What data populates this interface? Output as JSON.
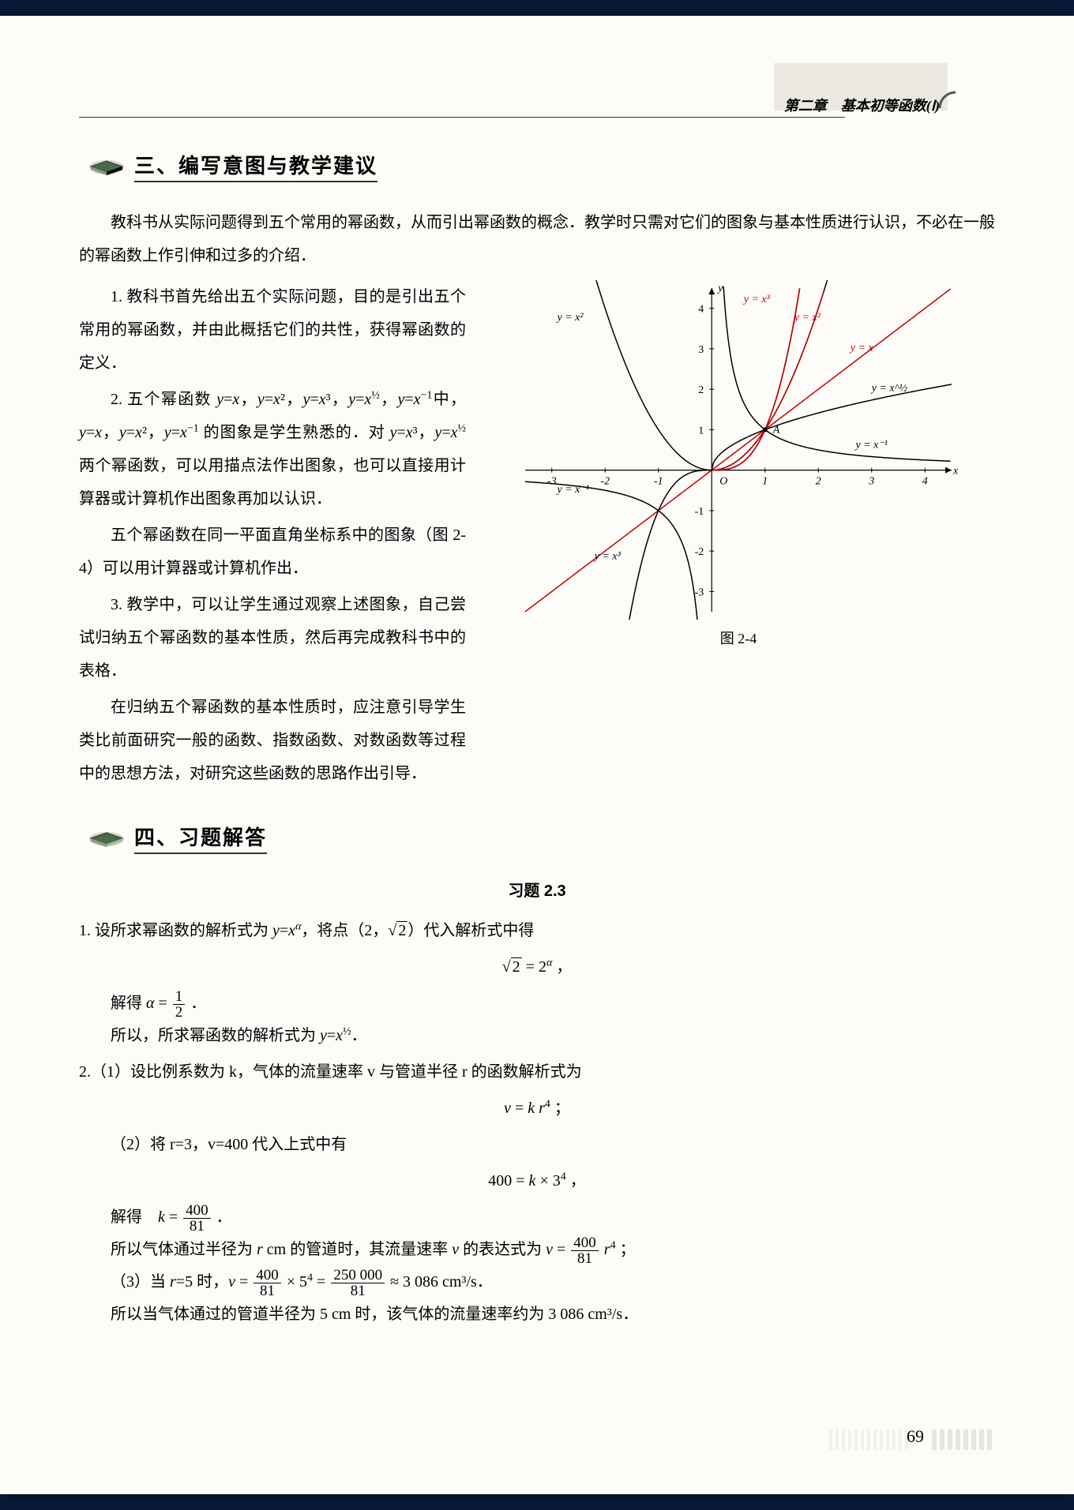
{
  "header": {
    "chapter": "第二章　基本初等函数(Ⅰ)"
  },
  "section3": {
    "title": "三、编写意图与教学建议",
    "intro": "教科书从实际问题得到五个常用的幂函数，从而引出幂函数的概念．教学时只需对它们的图象与基本性质进行认识，不必在一般的幂函数上作引伸和过多的介绍．",
    "p1a": "1. 教科书首先给出五个实际问题，目的是引出五个常用的幂函数，并由此概括它们的共性，获得幂函数的定义．",
    "p2a": "2. 五个幂函数 y=x，y=x²，y=x³，y=x^(1/2)，y=x⁻¹中，y=x，y=x²，y=x⁻¹ 的图象是学生熟悉的．对 y=x³，y=x^(1/2) 两个幂函数，可以用描点法作出图象，也可以直接用计算器或计算机作出图象再加以认识．",
    "p2b": "五个幂函数在同一平面直角坐标系中的图象（图 2-4）可以用计算器或计算机作出．",
    "p3a": "3. 教学中，可以让学生通过观察上述图象，自己尝试归纳五个幂函数的基本性质，然后再完成教科书中的表格．",
    "p3b": "在归纳五个幂函数的基本性质时，应注意引导学生类比前面研究一般的函数、指数函数、对数函数等过程中的思想方法，对研究这些函数的思路作出引导．"
  },
  "figure": {
    "caption": "图 2-4",
    "xlim": [
      -3.5,
      4.5
    ],
    "ylim": [
      -3.5,
      4.5
    ],
    "xticks": [
      -3,
      -2,
      -1,
      1,
      2,
      3,
      4
    ],
    "yticks": [
      -3,
      -2,
      -1,
      1,
      2,
      3,
      4
    ],
    "xlabel": "x",
    "ylabel": "y",
    "origin_label": "O",
    "point_A_label": "A",
    "curves": [
      {
        "id": "linear",
        "label": "y=x",
        "color": "#c00000",
        "width": 1.5
      },
      {
        "id": "square_black",
        "label": "y=x²",
        "color": "#000000",
        "width": 1.5
      },
      {
        "id": "square_red",
        "label": "y=x²",
        "color": "#c00000",
        "width": 1.5
      },
      {
        "id": "cube",
        "label": "y=x³",
        "color": "#000000",
        "width": 1.5
      },
      {
        "id": "cube_red",
        "label": "y=x³",
        "color": "#c00000",
        "width": 1.5
      },
      {
        "id": "sqrt",
        "label": "y=x^(1/2)",
        "color": "#000000",
        "width": 1.5
      },
      {
        "id": "inv",
        "label": "y=x⁻¹",
        "color": "#000000",
        "width": 1.5
      }
    ],
    "tick_fontsize": 14,
    "label_fontsize": 14,
    "background_color": "#fdfcf8",
    "axis_color": "#000000"
  },
  "section4": {
    "title": "四、习题解答",
    "exercise_heading": "习题 2.3",
    "q1": {
      "line1": "1. 设所求幂函数的解析式为 y=xᵃ，将点（2，√2）代入解析式中得",
      "eq1": "√2 = 2ᵃ ，",
      "line2_pre": "解得 α = ",
      "line2_post": " ．",
      "line3": "所以，所求幂函数的解析式为 y=x^(1/2)．"
    },
    "q2": {
      "line1": "2.（1）设比例系数为 k，气体的流量速率 v 与管道半径 r 的函数解析式为",
      "eq1": "v = k r⁴ ；",
      "line2": "（2）将 r=3，v=400 代入上式中有",
      "eq2": "400 = k × 3⁴ ，",
      "line3_pre": "解得　k = ",
      "line3_post": " ．",
      "line4_pre": "所以气体通过半径为 r cm 的管道时，其流量速率 v 的表达式为 v = ",
      "line4_post": " r⁴ ；",
      "line5_pre": "（3）当 r=5 时，v = ",
      "line5_mid1": " × 5⁴ = ",
      "line5_mid2": " ≈ 3 086 cm³/s．",
      "line6": "所以当气体通过的管道半径为 5 cm 时，该气体的流量速率约为 3 086 cm³/s．",
      "frac_400_81_num": "400",
      "frac_400_81_den": "81",
      "frac_250000_81_num": "250 000",
      "frac_250000_81_den": "81",
      "frac_1_2_num": "1",
      "frac_1_2_den": "2"
    }
  },
  "page_number": "69"
}
